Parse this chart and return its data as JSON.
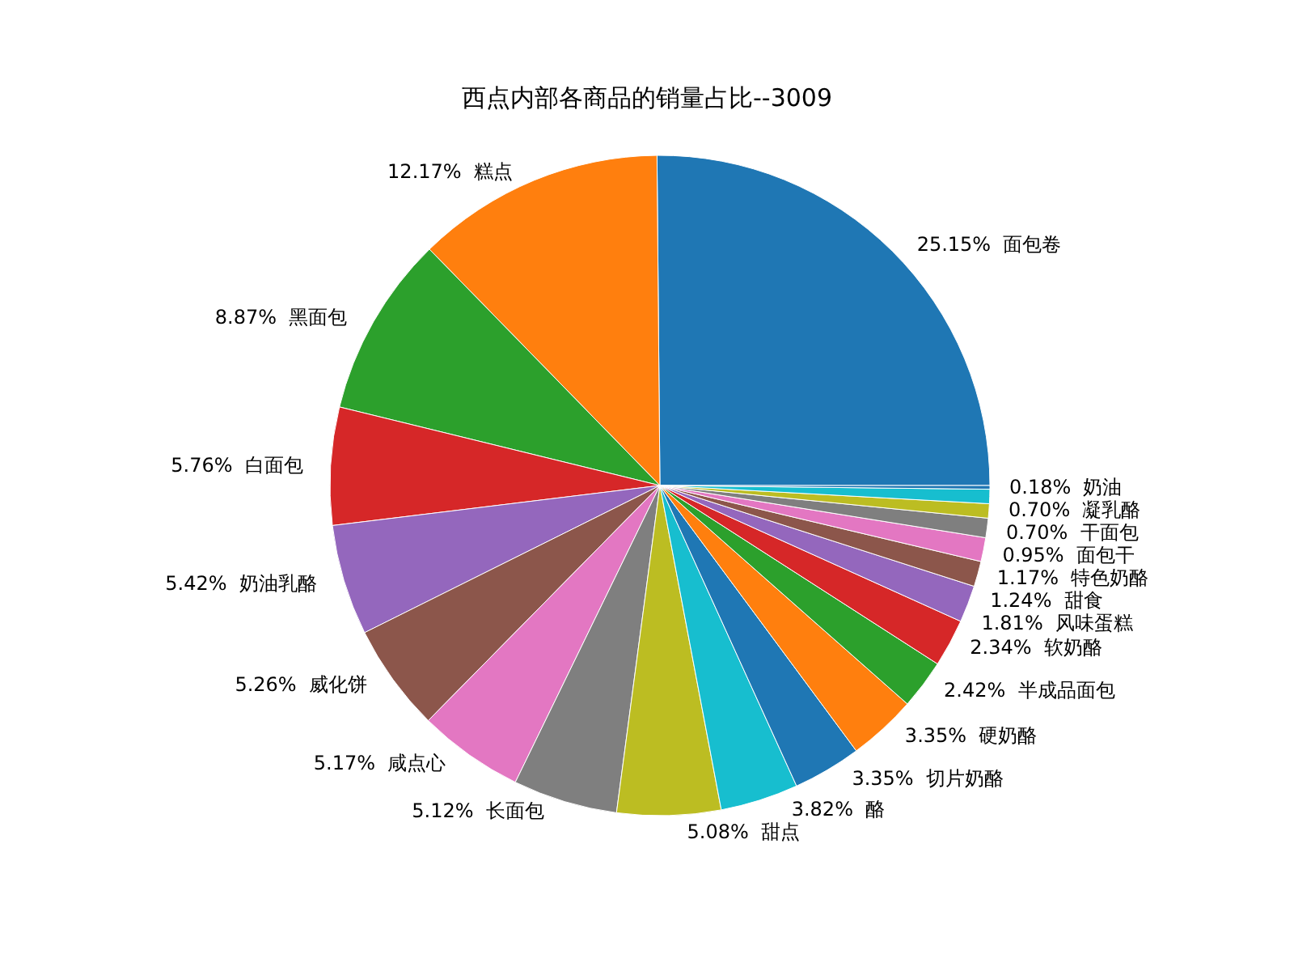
{
  "chart_data": {
    "type": "pie",
    "title": "西点内部各商品的销量占比--3009",
    "categories": [
      "面包卷",
      "糕点",
      "黑面包",
      "白面包",
      "奶油乳酪",
      "威化饼",
      "咸点心",
      "长面包",
      "甜点",
      "酪",
      "切片奶酪",
      "硬奶酪",
      "半成品面包",
      "软奶酪",
      "风味蛋糕",
      "甜食",
      "特色奶酪",
      "面包干",
      "干面包",
      "凝乳酪",
      "奶油"
    ],
    "values": [
      25.15,
      12.17,
      8.87,
      5.76,
      5.42,
      5.26,
      5.17,
      5.12,
      5.08,
      3.82,
      3.35,
      3.35,
      2.42,
      2.34,
      1.81,
      1.24,
      1.17,
      0.95,
      0.7,
      0.7,
      0.18
    ],
    "colors": [
      "#1f77b4",
      "#ff7f0e",
      "#2ca02c",
      "#d62728",
      "#9467bd",
      "#8c564b",
      "#e377c2",
      "#7f7f7f",
      "#bcbd22",
      "#17becf",
      "#1f77b4",
      "#ff7f0e",
      "#2ca02c",
      "#d62728",
      "#9467bd",
      "#8c564b",
      "#e377c2",
      "#7f7f7f",
      "#bcbd22",
      "#17becf",
      "#1f77b4"
    ],
    "value_labels": [
      "25.15%",
      "12.17%",
      "8.87%",
      "5.76%",
      "5.42%",
      "5.26%",
      "5.17%",
      "5.12%",
      "5.08%",
      "3.82%",
      "3.35%",
      "3.35%",
      "2.42%",
      "2.34%",
      "1.81%",
      "1.24%",
      "1.17%",
      "0.95%",
      "0.70%",
      "0.70%",
      "0.18%"
    ],
    "legend": false
  }
}
